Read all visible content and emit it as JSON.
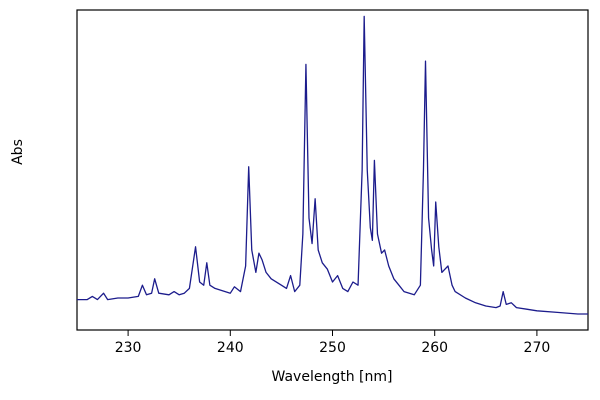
{
  "chart_data": {
    "type": "line",
    "xlabel": "Wavelength [nm]",
    "ylabel": "Abs",
    "xlim": [
      225,
      275
    ],
    "xticks": [
      230,
      240,
      250,
      260,
      270
    ],
    "ylim": [
      0,
      1
    ],
    "x": [
      225,
      226,
      226.5,
      227,
      227.6,
      228,
      229,
      230,
      231,
      231.4,
      231.8,
      232.3,
      232.6,
      233,
      234,
      234.5,
      235,
      235.5,
      236,
      236.6,
      237,
      237.4,
      237.7,
      238,
      238.5,
      239,
      240,
      240.4,
      241,
      241.5,
      241.8,
      242.1,
      242.5,
      242.8,
      243.1,
      243.5,
      244,
      245,
      245.5,
      245.9,
      246.3,
      246.8,
      247.1,
      247.4,
      247.7,
      248,
      248.3,
      248.6,
      249,
      249.5,
      250,
      250.5,
      251,
      251.5,
      252,
      252.5,
      252.9,
      253.1,
      253.4,
      253.7,
      253.9,
      254.1,
      254.4,
      254.8,
      255.1,
      255.5,
      256,
      256.5,
      257,
      258,
      258.6,
      258.9,
      259.1,
      259.4,
      259.7,
      259.9,
      260.1,
      260.4,
      260.7,
      261,
      261.3,
      261.7,
      262,
      263,
      264,
      265,
      266,
      266.4,
      266.7,
      267,
      267.5,
      268,
      269,
      270,
      272,
      274,
      275
    ],
    "series": [
      {
        "color": "#1c1c8c",
        "values": [
          0.095,
          0.095,
          0.105,
          0.095,
          0.115,
          0.095,
          0.1,
          0.1,
          0.105,
          0.14,
          0.11,
          0.115,
          0.16,
          0.115,
          0.11,
          0.12,
          0.11,
          0.115,
          0.13,
          0.26,
          0.15,
          0.14,
          0.21,
          0.14,
          0.13,
          0.125,
          0.115,
          0.135,
          0.12,
          0.2,
          0.51,
          0.25,
          0.18,
          0.24,
          0.22,
          0.18,
          0.16,
          0.14,
          0.13,
          0.17,
          0.12,
          0.14,
          0.3,
          0.83,
          0.35,
          0.27,
          0.41,
          0.25,
          0.21,
          0.19,
          0.15,
          0.17,
          0.13,
          0.12,
          0.15,
          0.14,
          0.5,
          0.98,
          0.5,
          0.32,
          0.28,
          0.53,
          0.3,
          0.24,
          0.25,
          0.2,
          0.16,
          0.14,
          0.12,
          0.11,
          0.14,
          0.5,
          0.84,
          0.35,
          0.25,
          0.2,
          0.4,
          0.26,
          0.18,
          0.19,
          0.2,
          0.14,
          0.12,
          0.1,
          0.085,
          0.075,
          0.07,
          0.075,
          0.12,
          0.08,
          0.085,
          0.07,
          0.065,
          0.06,
          0.055,
          0.05,
          0.05
        ]
      }
    ]
  }
}
